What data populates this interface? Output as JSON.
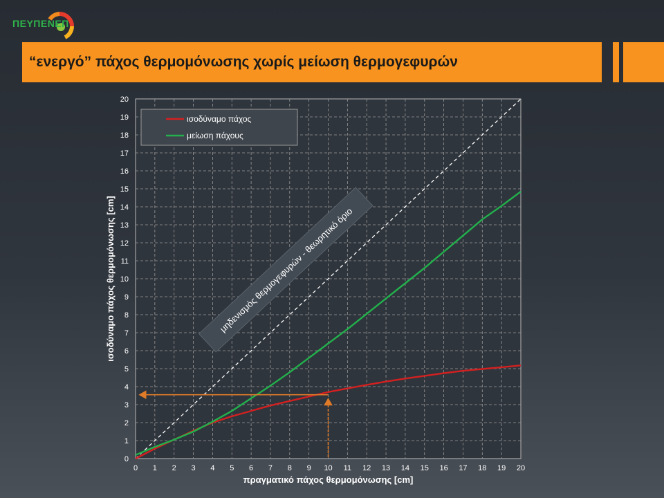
{
  "logo": {
    "text": "ΠΕΥΠΕΝΕΠ"
  },
  "slide": {
    "title": "“ενεργό” πάχος θερμομόνωσης χωρίς μείωση θερμογεφυρών"
  },
  "colors": {
    "accent": "#f7931e",
    "series_red": "#d42020",
    "series_green": "#22b14c",
    "annotation": "#e07b28",
    "grid": "#9a9a9a"
  },
  "chart_data": {
    "type": "line",
    "title": "",
    "xlabel": "πραγματικό πάχος θερμομόνωσης [cm]",
    "ylabel": "ισοδύναμο πάχος θερμομόνωσης [cm]",
    "xlim": [
      0,
      20
    ],
    "ylim": [
      0,
      20
    ],
    "xticks": [
      "0",
      "1",
      "2",
      "3",
      "4",
      "5",
      "6",
      "7",
      "8",
      "9",
      "10",
      "11",
      "12",
      "13",
      "14",
      "15",
      "16",
      "17",
      "18",
      "19",
      "20"
    ],
    "yticks": [
      "0",
      "1",
      "2",
      "3",
      "4",
      "5",
      "6",
      "7",
      "8",
      "9",
      "10",
      "11",
      "12",
      "13",
      "14",
      "15",
      "16",
      "17",
      "18",
      "19",
      "20"
    ],
    "grid": true,
    "legend_position": "top-left",
    "series": [
      {
        "name": "ισοδύναμο πάχος",
        "color": "#d42020",
        "x": [
          0,
          1,
          2,
          3,
          4,
          5,
          6,
          7,
          8,
          9,
          10,
          11,
          12,
          13,
          14,
          15,
          16,
          17,
          18,
          19,
          20
        ],
        "y": [
          0,
          0.55,
          1.05,
          1.55,
          2.0,
          2.35,
          2.65,
          2.95,
          3.2,
          3.45,
          3.7,
          3.9,
          4.1,
          4.28,
          4.45,
          4.6,
          4.75,
          4.88,
          4.98,
          5.08,
          5.18
        ]
      },
      {
        "name": "μείωση πάχους",
        "color": "#22b14c",
        "x": [
          0,
          1,
          2,
          3,
          4,
          5,
          6,
          7,
          8,
          9,
          10,
          11,
          12,
          13,
          14,
          15,
          16,
          17,
          18,
          19,
          20
        ],
        "y": [
          0.2,
          0.65,
          1.05,
          1.5,
          2.05,
          2.65,
          3.35,
          4.05,
          4.8,
          5.6,
          6.4,
          7.2,
          8.05,
          8.9,
          9.75,
          10.6,
          11.5,
          12.4,
          13.3,
          14.05,
          14.85
        ]
      }
    ],
    "reference_line": {
      "label": "μηδενισμός θερμογεφυρών - θεωρητικό όριο",
      "x": [
        0,
        20
      ],
      "y": [
        0,
        20
      ]
    },
    "annotation": {
      "x": 10,
      "y": 3.55
    }
  }
}
